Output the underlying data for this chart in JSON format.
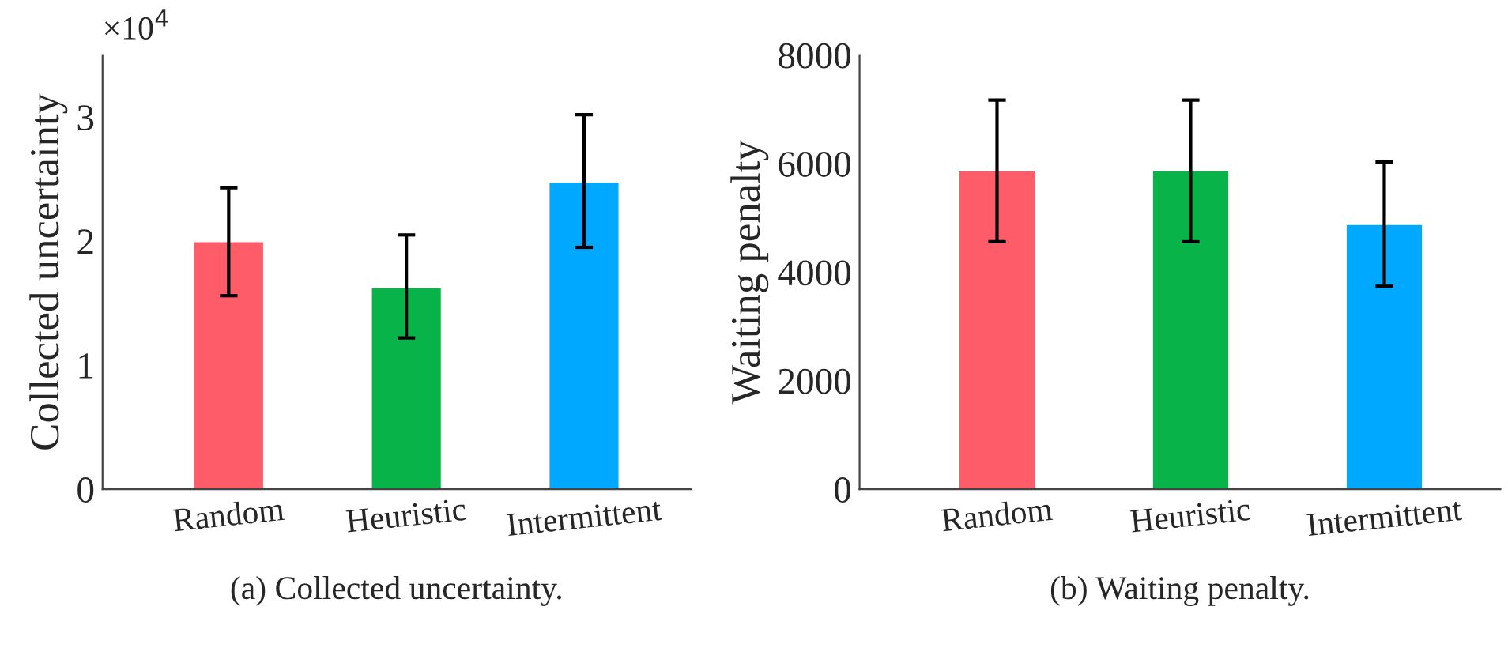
{
  "chart_data": [
    {
      "type": "bar",
      "title": "(a) Collected uncertainty.",
      "ylabel": "Collected uncertainty",
      "categories": [
        "Random",
        "Heuristic",
        "Intermittent"
      ],
      "values": [
        2.0,
        1.63,
        2.48
      ],
      "colors": [
        "#ff5c69",
        "#08b34a",
        "#00a8ff"
      ],
      "errors": [
        [
          1.56,
          2.43
        ],
        [
          1.22,
          2.05
        ],
        [
          1.95,
          3.02
        ]
      ],
      "ylim": [
        0,
        3.5
      ],
      "yticks": [
        0,
        1,
        2,
        3
      ],
      "annotations": [
        "×10$^{4}$"
      ],
      "grid": false,
      "legend": false
    },
    {
      "type": "bar",
      "title": "(b) Waiting penalty.",
      "ylabel": "Waiting penalty",
      "categories": [
        "Random",
        "Heuristic",
        "Intermittent"
      ],
      "values": [
        5880,
        5880,
        4890
      ],
      "colors": [
        "#ff5c69",
        "#08b34a",
        "#00a8ff"
      ],
      "errors": [
        [
          4560,
          7170
        ],
        [
          4560,
          7170
        ],
        [
          3740,
          6030
        ]
      ],
      "ylim": [
        0,
        8000
      ],
      "yticks": [
        0,
        2000,
        4000,
        6000,
        8000
      ],
      "grid": false,
      "legend": false
    }
  ]
}
